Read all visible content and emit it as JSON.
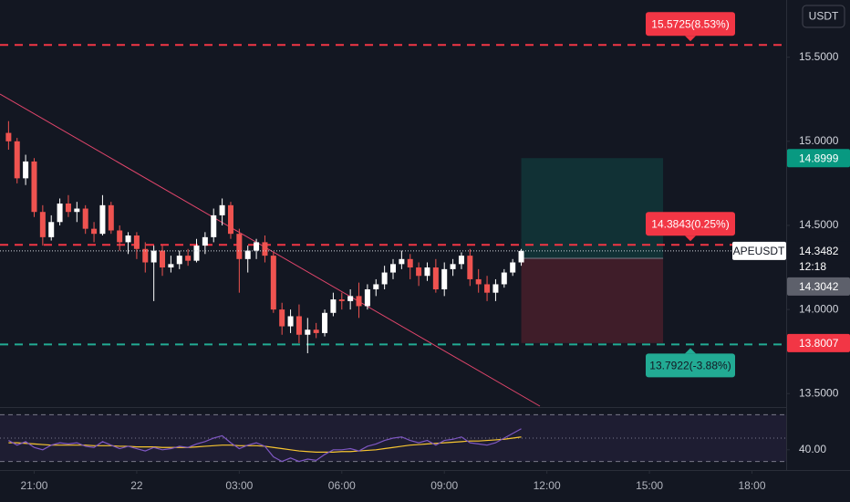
{
  "chart_data": {
    "type": "candlestick",
    "symbol": "APEUSDT",
    "currency": "USDT",
    "countdown": "12:18",
    "last_price": 14.3482,
    "colors": {
      "up": "#ffffff",
      "down": "#ef5350"
    },
    "xlim": [
      20,
      43
    ],
    "xticks": [
      {
        "value": 21,
        "label": "21:00"
      },
      {
        "value": 24,
        "label": "22"
      },
      {
        "value": 27,
        "label": "03:00"
      },
      {
        "value": 30,
        "label": "06:00"
      },
      {
        "value": 33,
        "label": "09:00"
      },
      {
        "value": 36,
        "label": "12:00"
      },
      {
        "value": 39,
        "label": "15:00"
      },
      {
        "value": 42,
        "label": "18:00"
      }
    ],
    "ylim": [
      13.42,
      15.84
    ],
    "yticks": [
      {
        "value": 13.5,
        "label": "13.5000"
      },
      {
        "value": 14,
        "label": "14.0000"
      },
      {
        "value": 14.5,
        "label": "14.5000"
      },
      {
        "value": 15,
        "label": "15.0000"
      },
      {
        "value": 15.5,
        "label": "15.5000"
      }
    ],
    "x": [
      20.25,
      20.5,
      20.75,
      21,
      21.25,
      21.5,
      21.75,
      22,
      22.25,
      22.5,
      22.75,
      23,
      23.25,
      23.5,
      23.75,
      24,
      24.25,
      24.5,
      24.75,
      25,
      25.25,
      25.5,
      25.75,
      26,
      26.25,
      26.5,
      26.75,
      27,
      27.25,
      27.5,
      27.75,
      28,
      28.25,
      28.5,
      28.75,
      29,
      29.25,
      29.5,
      29.75,
      30,
      30.25,
      30.5,
      30.75,
      31,
      31.25,
      31.5,
      31.75,
      32,
      32.25,
      32.5,
      32.75,
      33,
      33.25,
      33.5,
      33.75,
      34,
      34.25,
      34.5,
      34.75,
      35,
      35.25
    ],
    "open": [
      15.05,
      15.0,
      14.78,
      14.88,
      14.58,
      14.43,
      14.52,
      14.63,
      14.58,
      14.6,
      14.48,
      14.45,
      14.62,
      14.47,
      14.4,
      14.44,
      14.36,
      14.28,
      14.35,
      14.25,
      14.27,
      14.32,
      14.29,
      14.38,
      14.43,
      14.56,
      14.62,
      14.45,
      14.3,
      14.35,
      14.4,
      14.32,
      14.0,
      13.9,
      13.96,
      13.85,
      13.88,
      13.86,
      13.98,
      14.06,
      14.05,
      14.08,
      14.02,
      14.12,
      14.15,
      14.22,
      14.27,
      14.3,
      14.25,
      14.2,
      14.25,
      14.12,
      14.24,
      14.27,
      14.32,
      14.18,
      14.15,
      14.1,
      14.15,
      14.22,
      14.28
    ],
    "high": [
      15.12,
      15.02,
      14.92,
      14.9,
      14.62,
      14.56,
      14.66,
      14.68,
      14.64,
      14.62,
      14.52,
      14.68,
      14.64,
      14.5,
      14.46,
      14.46,
      14.4,
      14.38,
      14.38,
      14.32,
      14.35,
      14.36,
      14.42,
      14.46,
      14.6,
      14.66,
      14.64,
      14.48,
      14.38,
      14.42,
      14.44,
      14.34,
      14.04,
      14.0,
      14.03,
      13.95,
      13.92,
      14.0,
      14.1,
      14.1,
      14.12,
      14.16,
      14.15,
      14.18,
      14.26,
      14.3,
      14.35,
      14.33,
      14.28,
      14.28,
      14.3,
      14.28,
      14.3,
      14.34,
      14.36,
      14.24,
      14.2,
      14.18,
      14.24,
      14.3,
      14.36
    ],
    "low": [
      14.95,
      14.75,
      14.74,
      14.55,
      14.38,
      14.41,
      14.5,
      14.55,
      14.52,
      14.45,
      14.4,
      14.44,
      14.45,
      14.35,
      14.33,
      14.3,
      14.22,
      14.05,
      14.2,
      14.22,
      14.24,
      14.26,
      14.28,
      14.33,
      14.4,
      14.5,
      14.42,
      14.1,
      14.22,
      14.3,
      14.28,
      13.98,
      13.85,
      13.86,
      13.8,
      13.74,
      13.83,
      13.84,
      13.96,
      14.0,
      14.0,
      13.95,
      14.0,
      14.08,
      14.12,
      14.18,
      14.24,
      14.18,
      14.14,
      14.17,
      14.1,
      14.08,
      14.2,
      14.24,
      14.14,
      14.1,
      14.05,
      14.05,
      14.13,
      14.2,
      14.26
    ],
    "close": [
      15.0,
      14.78,
      14.88,
      14.58,
      14.43,
      14.52,
      14.63,
      14.58,
      14.6,
      14.48,
      14.45,
      14.62,
      14.47,
      14.4,
      14.44,
      14.36,
      14.28,
      14.35,
      14.25,
      14.27,
      14.32,
      14.29,
      14.38,
      14.43,
      14.56,
      14.62,
      14.45,
      14.3,
      14.35,
      14.4,
      14.32,
      14.0,
      13.9,
      13.96,
      13.85,
      13.88,
      13.86,
      13.98,
      14.06,
      14.05,
      14.08,
      14.02,
      14.12,
      14.15,
      14.22,
      14.27,
      14.3,
      14.25,
      14.2,
      14.25,
      14.12,
      14.24,
      14.27,
      14.32,
      14.18,
      14.15,
      14.1,
      14.15,
      14.22,
      14.28,
      14.3482
    ],
    "levels": [
      {
        "value": 15.5725,
        "label": "15.5725(8.53%)",
        "color": "#f23645"
      },
      {
        "value": 14.3843,
        "label": "14.3843(0.25%)",
        "color": "#f23645"
      },
      {
        "value": 13.7922,
        "label": "13.7922(-3.88%)",
        "color": "#22ab94"
      }
    ],
    "position": {
      "x_start": 35.25,
      "x_end": 39.4,
      "target": 14.8999,
      "entry": 14.3042,
      "stop": 13.8007
    },
    "rsi": {
      "ylim": [
        25,
        75
      ],
      "yticks": [
        {
          "value": 40,
          "label": "40.00"
        }
      ],
      "bands": [
        70,
        50,
        30
      ],
      "color": "#7e57c2",
      "ma_color": "#f7c530",
      "values": [
        48,
        44,
        47,
        42,
        40,
        44,
        46,
        45,
        46,
        43,
        42,
        47,
        44,
        41,
        43,
        41,
        39,
        42,
        40,
        41,
        43,
        42,
        45,
        47,
        50,
        52,
        46,
        41,
        44,
        46,
        43,
        34,
        30,
        33,
        30,
        32,
        31,
        36,
        40,
        40,
        41,
        39,
        43,
        45,
        48,
        50,
        51,
        48,
        46,
        48,
        44,
        48,
        49,
        51,
        46,
        45,
        44,
        46,
        50,
        54,
        58
      ],
      "ma": [
        46,
        46,
        45.5,
        45,
        44.5,
        44,
        44,
        44,
        44,
        44,
        43.5,
        43.5,
        43.5,
        43,
        43,
        42.5,
        42.5,
        42.5,
        42,
        42,
        42,
        42,
        42.5,
        43,
        43.5,
        44,
        44,
        43.5,
        43.5,
        43.5,
        43,
        42,
        41,
        40,
        39,
        38.5,
        38,
        38,
        38,
        38.5,
        38.5,
        39,
        39.5,
        40,
        41,
        42,
        43,
        44,
        44.5,
        45,
        45.5,
        46,
        46.5,
        47,
        47.5,
        47.5,
        48,
        48.5,
        49,
        50,
        51
      ]
    }
  }
}
